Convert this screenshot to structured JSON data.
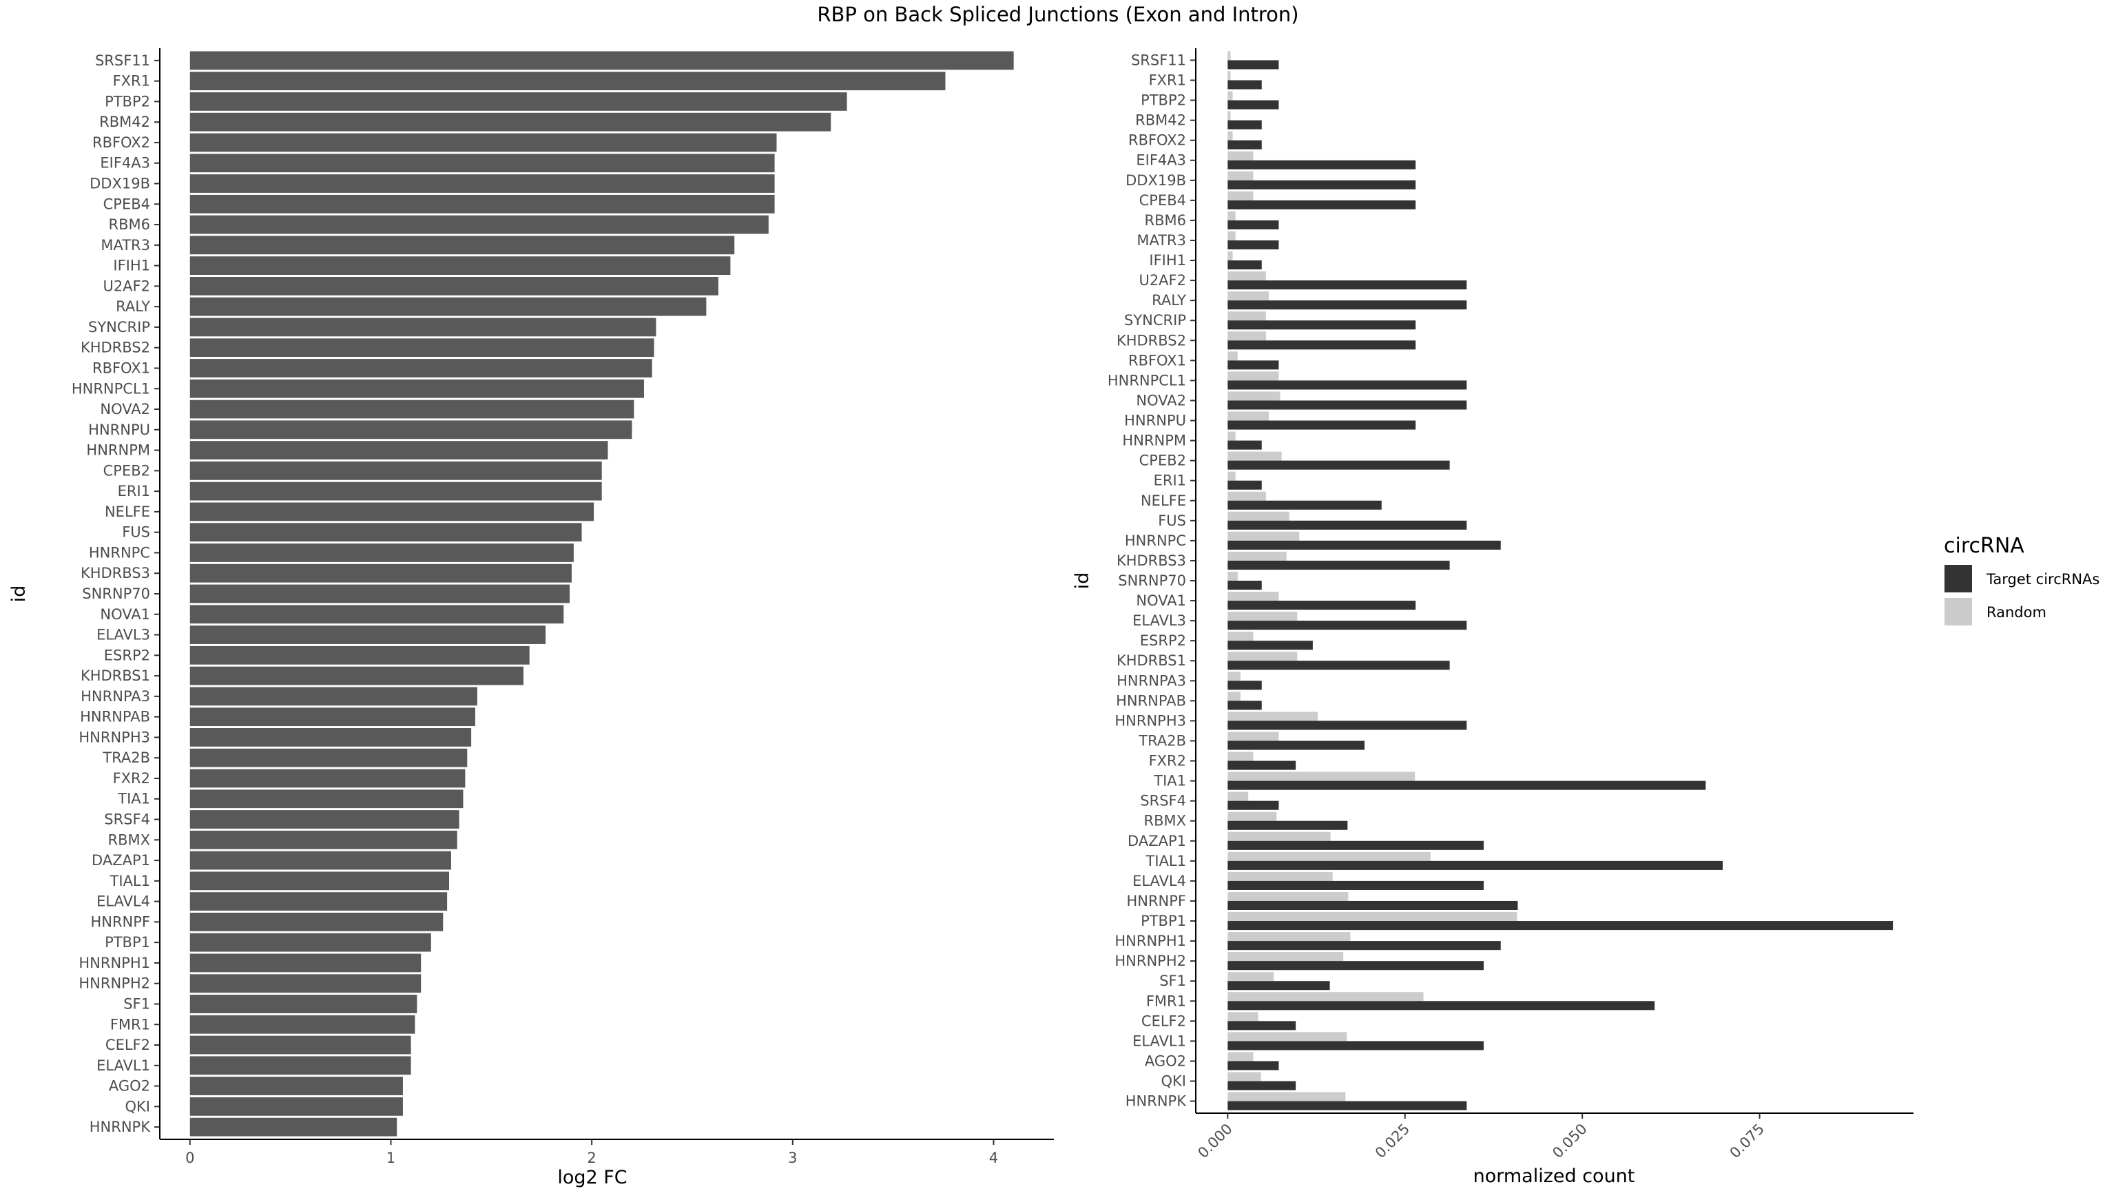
{
  "title": "RBP on Back Spliced Junctions (Exon and Intron)",
  "chart_data": [
    {
      "type": "bar",
      "orientation": "horizontal",
      "xlabel": "log2 FC",
      "ylabel": "id",
      "xlim": [
        -0.15,
        4.3
      ],
      "xticks": [
        0,
        1,
        2,
        3,
        4
      ],
      "grid": false,
      "bar_color": "#595959",
      "categories": [
        "SRSF11",
        "FXR1",
        "PTBP2",
        "RBM42",
        "RBFOX2",
        "EIF4A3",
        "DDX19B",
        "CPEB4",
        "RBM6",
        "MATR3",
        "IFIH1",
        "U2AF2",
        "RALY",
        "SYNCRIP",
        "KHDRBS2",
        "RBFOX1",
        "HNRNPCL1",
        "NOVA2",
        "HNRNPU",
        "HNRNPM",
        "CPEB2",
        "ERI1",
        "NELFE",
        "FUS",
        "HNRNPC",
        "KHDRBS3",
        "SNRNP70",
        "NOVA1",
        "ELAVL3",
        "ESRP2",
        "KHDRBS1",
        "HNRNPA3",
        "HNRNPAB",
        "HNRNPH3",
        "TRA2B",
        "FXR2",
        "TIA1",
        "SRSF4",
        "RBMX",
        "DAZAP1",
        "TIAL1",
        "ELAVL4",
        "HNRNPF",
        "PTBP1",
        "HNRNPH1",
        "HNRNPH2",
        "SF1",
        "FMR1",
        "CELF2",
        "ELAVL1",
        "AGO2",
        "QKI",
        "HNRNPK"
      ],
      "values": [
        4.1,
        3.76,
        3.27,
        3.19,
        2.92,
        2.91,
        2.91,
        2.91,
        2.88,
        2.71,
        2.69,
        2.63,
        2.57,
        2.32,
        2.31,
        2.3,
        2.26,
        2.21,
        2.2,
        2.08,
        2.05,
        2.05,
        2.01,
        1.95,
        1.91,
        1.9,
        1.89,
        1.86,
        1.77,
        1.69,
        1.66,
        1.43,
        1.42,
        1.4,
        1.38,
        1.37,
        1.36,
        1.34,
        1.33,
        1.3,
        1.29,
        1.28,
        1.26,
        1.2,
        1.15,
        1.15,
        1.13,
        1.12,
        1.1,
        1.1,
        1.06,
        1.06,
        1.03
      ]
    },
    {
      "type": "bar",
      "orientation": "horizontal",
      "grouped": true,
      "xlabel": "normalized count",
      "ylabel": "id",
      "xlim": [
        -0.0045,
        0.0967
      ],
      "xticks": [
        "0.000",
        "0.025",
        "0.050",
        "0.075"
      ],
      "xtick_values": [
        0,
        0.025,
        0.05,
        0.075
      ],
      "grid": false,
      "legend": {
        "title": "circRNA",
        "position": "right"
      },
      "categories": [
        "SRSF11",
        "FXR1",
        "PTBP2",
        "RBM42",
        "RBFOX2",
        "EIF4A3",
        "DDX19B",
        "CPEB4",
        "RBM6",
        "MATR3",
        "IFIH1",
        "U2AF2",
        "RALY",
        "SYNCRIP",
        "KHDRBS2",
        "RBFOX1",
        "HNRNPCL1",
        "NOVA2",
        "HNRNPU",
        "HNRNPM",
        "CPEB2",
        "ERI1",
        "NELFE",
        "FUS",
        "HNRNPC",
        "KHDRBS3",
        "SNRNP70",
        "NOVA1",
        "ELAVL3",
        "ESRP2",
        "KHDRBS1",
        "HNRNPA3",
        "HNRNPAB",
        "HNRNPH3",
        "TRA2B",
        "FXR2",
        "TIA1",
        "SRSF4",
        "RBMX",
        "DAZAP1",
        "TIAL1",
        "ELAVL4",
        "HNRNPF",
        "PTBP1",
        "HNRNPH1",
        "HNRNPH2",
        "SF1",
        "FMR1",
        "CELF2",
        "ELAVL1",
        "AGO2",
        "QKI",
        "HNRNPK"
      ],
      "series": [
        {
          "name": "Target circRNAs",
          "color": "#333333",
          "values": [
            0.0072,
            0.0048,
            0.0072,
            0.0048,
            0.0048,
            0.0265,
            0.0265,
            0.0265,
            0.0072,
            0.0072,
            0.0048,
            0.0337,
            0.0337,
            0.0265,
            0.0265,
            0.0072,
            0.0337,
            0.0337,
            0.0265,
            0.0048,
            0.0313,
            0.0048,
            0.0217,
            0.0337,
            0.0385,
            0.0313,
            0.0048,
            0.0265,
            0.0337,
            0.012,
            0.0313,
            0.0048,
            0.0048,
            0.0337,
            0.0193,
            0.0096,
            0.0674,
            0.0072,
            0.0169,
            0.0361,
            0.0698,
            0.0361,
            0.0409,
            0.0938,
            0.0385,
            0.0361,
            0.0144,
            0.0602,
            0.0096,
            0.0361,
            0.0072,
            0.0096,
            0.0337
          ]
        },
        {
          "name": "Random",
          "color": "#cccccc",
          "values": [
            0.0004,
            0.0004,
            0.0007,
            0.0004,
            0.0007,
            0.0036,
            0.0036,
            0.0036,
            0.0011,
            0.0011,
            0.0007,
            0.0054,
            0.0058,
            0.0054,
            0.0054,
            0.0014,
            0.0072,
            0.0074,
            0.0058,
            0.0011,
            0.0076,
            0.0011,
            0.0054,
            0.0087,
            0.0101,
            0.0083,
            0.0014,
            0.0072,
            0.0098,
            0.0036,
            0.0098,
            0.0018,
            0.0018,
            0.0127,
            0.0072,
            0.0036,
            0.0264,
            0.0029,
            0.0069,
            0.0145,
            0.0286,
            0.0148,
            0.017,
            0.0408,
            0.0173,
            0.0163,
            0.0065,
            0.0276,
            0.0043,
            0.0168,
            0.0036,
            0.0047,
            0.0166
          ]
        }
      ]
    }
  ]
}
